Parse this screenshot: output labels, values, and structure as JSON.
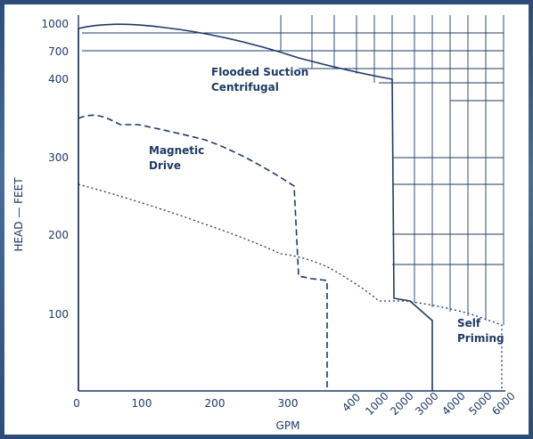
{
  "chart_data": {
    "type": "line",
    "xlabel": "GPM",
    "ylabel": "HEAD — FEET",
    "x_ticks": [
      "0",
      "100",
      "200",
      "300",
      "400",
      "1000",
      "2000",
      "3000",
      "4000",
      "5000",
      "6000"
    ],
    "y_ticks": [
      "100",
      "200",
      "300",
      "400",
      "700",
      "1000"
    ],
    "grid": "log-scale grid in upper-right region",
    "series": [
      {
        "name": "Flooded Suction Centrifugal",
        "line_style": "solid",
        "label_lines": [
          "Flooded Suction",
          "Centrifugal"
        ],
        "x": [
          0,
          0,
          20,
          60,
          100,
          200,
          300,
          "400-1000",
          1000,
          1000,
          2000,
          3000,
          3000
        ],
        "y": [
          0,
          930,
          960,
          970,
          960,
          880,
          700,
          480,
          400,
          120,
          95,
          95,
          0
        ]
      },
      {
        "name": "Magnetic Drive",
        "line_style": "dashed",
        "label_lines": [
          "Magnetic",
          "Drive"
        ],
        "x": [
          0,
          20,
          60,
          100,
          150,
          200,
          250,
          280,
          310,
          310,
          320,
          345,
          345
        ],
        "y": [
          350,
          355,
          340,
          340,
          335,
          325,
          305,
          285,
          260,
          145,
          145,
          140,
          0
        ]
      },
      {
        "name": "Self Priming",
        "line_style": "dotted",
        "label_lines": [
          "Self",
          "Priming"
        ],
        "x": [
          0,
          50,
          150,
          250,
          310,
          330,
          400,
          1000,
          2000,
          3000,
          4000,
          5000,
          6000,
          6000
        ],
        "y": [
          265,
          250,
          230,
          205,
          185,
          175,
          150,
          115,
          115,
          110,
          105,
          100,
          85,
          0
        ]
      }
    ]
  }
}
